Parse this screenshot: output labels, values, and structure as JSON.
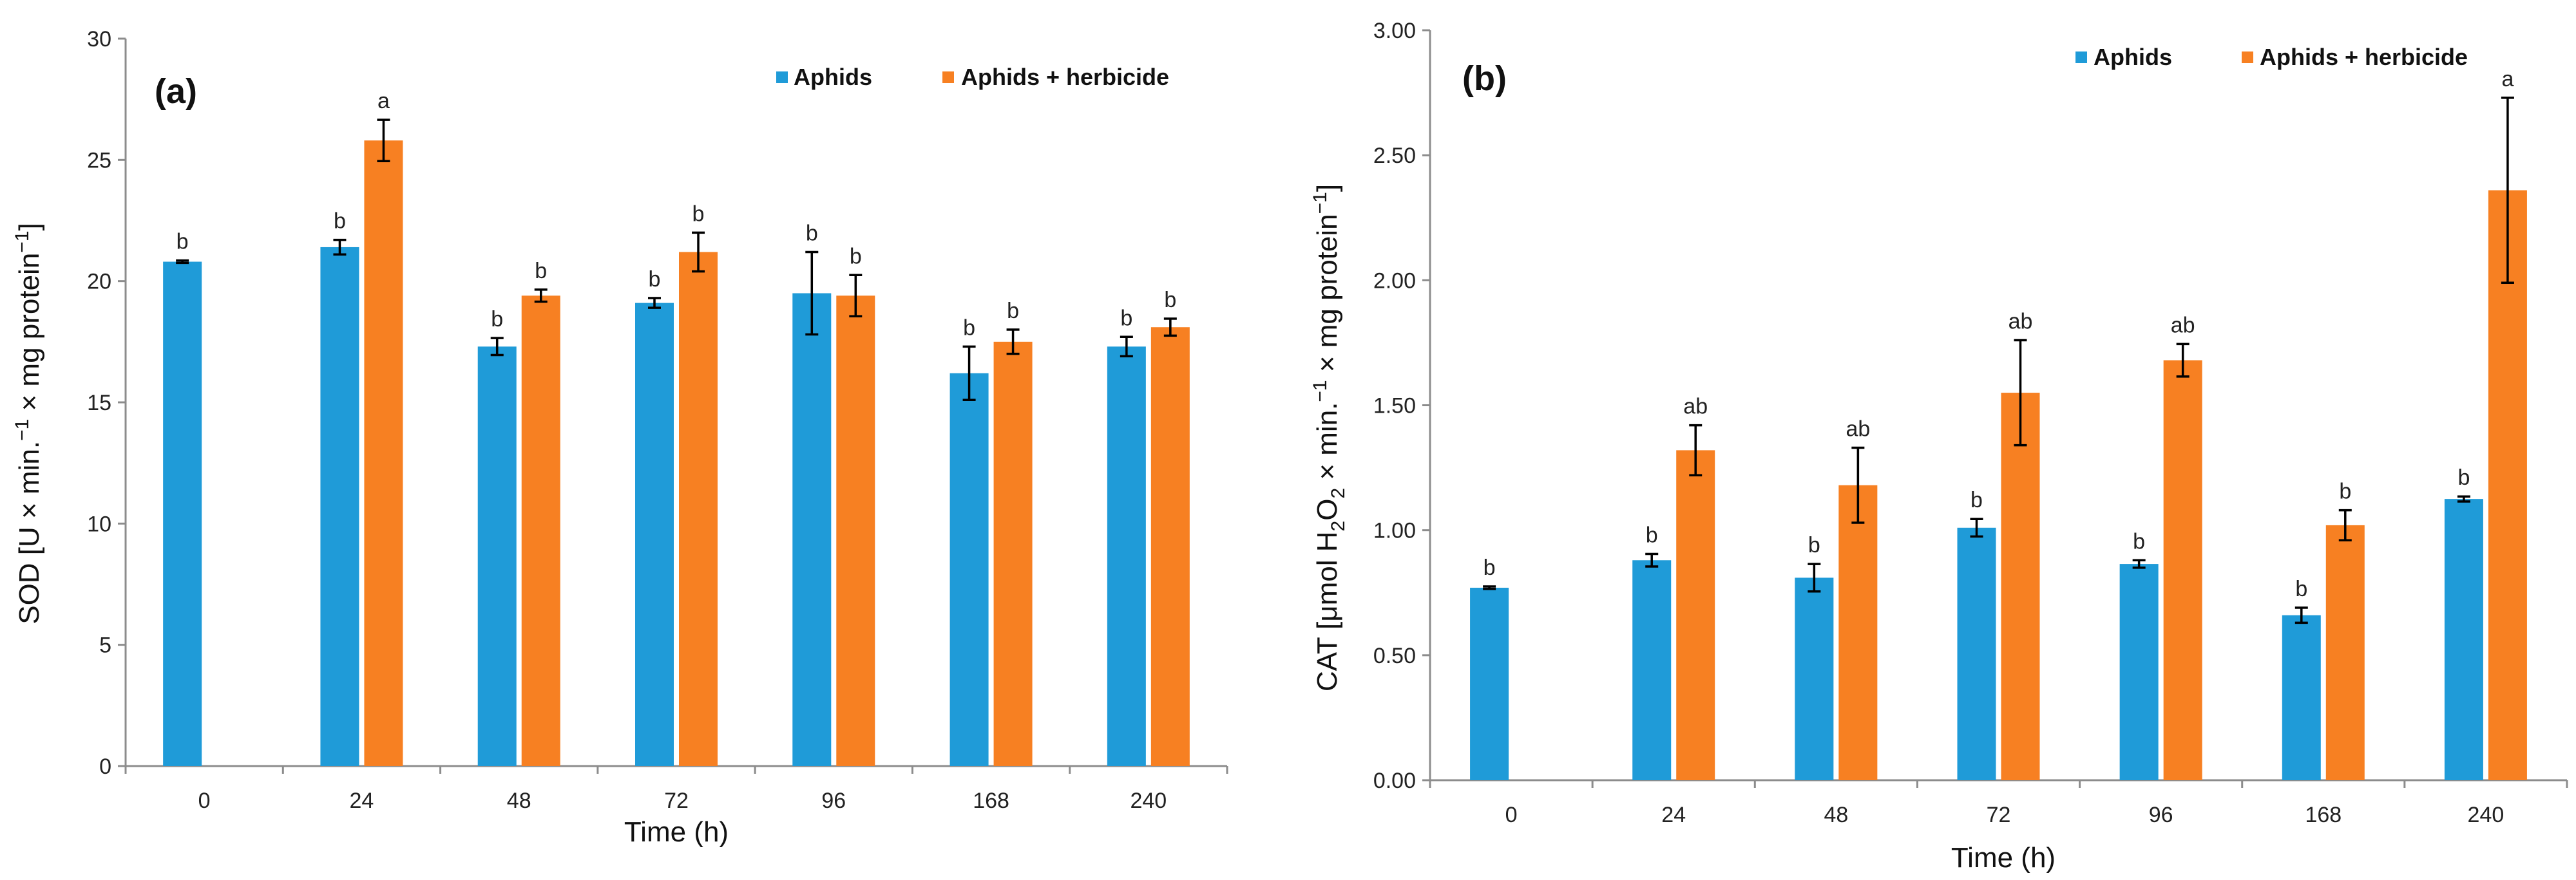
{
  "colors": {
    "aphids": "#1f9bd8",
    "aphids_herbicide": "#f78022"
  },
  "chart_data": [
    {
      "type": "bar",
      "panel_label": "(a)",
      "xlabel": "Time (h)",
      "ylabel_parts": [
        "SOD [U × min.",
        "−1",
        " × mg protein",
        "−1",
        "]"
      ],
      "ylim": [
        0,
        30
      ],
      "yticks": [
        "0",
        "5",
        "10",
        "15",
        "20",
        "25",
        "30"
      ],
      "categories": [
        "0",
        "24",
        "48",
        "72",
        "96",
        "168",
        "240"
      ],
      "legend": [
        "Aphids",
        "Aphids + herbicide"
      ],
      "series": [
        {
          "name": "Aphids",
          "values": [
            20.8,
            21.4,
            17.3,
            19.1,
            19.5,
            16.2,
            17.3
          ],
          "errors": [
            0.05,
            0.3,
            0.35,
            0.2,
            1.7,
            1.1,
            0.4
          ],
          "labels": [
            "b",
            "b",
            "b",
            "b",
            "b",
            "b",
            "b"
          ]
        },
        {
          "name": "Aphids + herbicide",
          "values": [
            null,
            25.8,
            19.4,
            21.2,
            19.4,
            17.5,
            18.1
          ],
          "errors": [
            null,
            0.85,
            0.25,
            0.8,
            0.85,
            0.5,
            0.35
          ],
          "labels": [
            "",
            "a",
            "b",
            "b",
            "b",
            "b",
            "b"
          ]
        }
      ]
    },
    {
      "type": "bar",
      "panel_label": "(b)",
      "xlabel": "Time (h)",
      "ylabel_parts": [
        "CAT [μmol H",
        "2",
        "O",
        "2",
        " × min.",
        "−1",
        " × mg protein",
        "−1",
        "]"
      ],
      "ylim": [
        0,
        3
      ],
      "yticks": [
        "0.00",
        "0.50",
        "1.00",
        "1.50",
        "2.00",
        "2.50",
        "3.00"
      ],
      "categories": [
        "0",
        "24",
        "48",
        "72",
        "96",
        "168",
        "240"
      ],
      "legend": [
        "Aphids",
        "Aphids + herbicide"
      ],
      "series": [
        {
          "name": "Aphids",
          "values": [
            0.77,
            0.88,
            0.81,
            1.01,
            0.865,
            0.66,
            1.125
          ],
          "errors": [
            0.005,
            0.025,
            0.055,
            0.035,
            0.015,
            0.03,
            0.01
          ],
          "labels": [
            "b",
            "b",
            "b",
            "b",
            "b",
            "b",
            "b"
          ]
        },
        {
          "name": "Aphids + herbicide",
          "values": [
            null,
            1.32,
            1.18,
            1.55,
            1.68,
            1.02,
            2.36
          ],
          "errors": [
            null,
            0.1,
            0.15,
            0.21,
            0.065,
            0.06,
            0.37
          ],
          "labels": [
            "",
            "ab",
            "ab",
            "ab",
            "ab",
            "b",
            "a"
          ]
        }
      ]
    }
  ]
}
